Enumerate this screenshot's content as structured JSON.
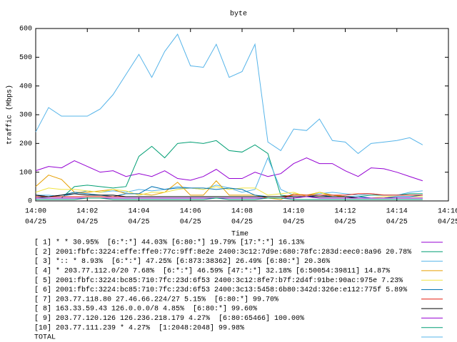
{
  "chart_data": {
    "type": "line",
    "title": "byte",
    "y_label": "traffic (Mbps)",
    "x_label": "Time",
    "x": [
      0,
      0.5,
      1,
      1.5,
      2,
      2.5,
      3,
      3.5,
      4,
      4.5,
      5,
      5.5,
      6,
      6.5,
      7,
      7.5,
      8,
      8.5,
      9,
      9.5,
      10,
      10.5,
      11,
      11.5,
      12,
      12.5,
      13,
      13.5,
      14,
      14.5,
      15
    ],
    "xlim": [
      0,
      16
    ],
    "xticks": [
      {
        "value": 0,
        "label": "14:00",
        "date": "04/25"
      },
      {
        "value": 2,
        "label": "14:02",
        "date": "04/25"
      },
      {
        "value": 4,
        "label": "14:04",
        "date": "04/25"
      },
      {
        "value": 6,
        "label": "14:06",
        "date": "04/25"
      },
      {
        "value": 8,
        "label": "14:08",
        "date": "04/25"
      },
      {
        "value": 10,
        "label": "14:10",
        "date": "04/25"
      },
      {
        "value": 12,
        "label": "14:12",
        "date": "04/25"
      },
      {
        "value": 14,
        "label": "14:14",
        "date": "04/25"
      },
      {
        "value": 16,
        "label": "14:16",
        "date": "04/25"
      }
    ],
    "ylim": [
      0,
      600
    ],
    "yticks": [
      0,
      100,
      200,
      300,
      400,
      500,
      600
    ],
    "grid": false,
    "series": [
      {
        "name": "[ 1] * * 30.95%  [6:*:*] 44.03% [6:80:*] 19.79% [17:*:*] 16.13%",
        "color": "#9400d3",
        "values": [
          105,
          120,
          115,
          140,
          120,
          100,
          105,
          85,
          95,
          85,
          105,
          78,
          72,
          85,
          110,
          78,
          78,
          100,
          85,
          95,
          130,
          150,
          130,
          130,
          105,
          85,
          115,
          112,
          100,
          85,
          70
        ]
      },
      {
        "name": "[ 2] 2001:fbfc:3224:effe:ffe0:77c:9ff:8e2e 2400:3c12:7d9e:680:78fc:283d:eec0:8a96 20.78%",
        "color": "#009e73",
        "values": [
          15,
          10,
          10,
          50,
          55,
          50,
          45,
          50,
          155,
          190,
          150,
          200,
          205,
          200,
          210,
          175,
          170,
          195,
          165,
          20,
          15,
          15,
          30,
          20,
          15,
          15,
          20,
          20,
          20,
          25,
          25
        ]
      },
      {
        "name": "[ 3] *:: * 8.93%  [6:*:*] 47.25% [6:873:38362] 26.49% [6:80:*] 20.36%",
        "color": "#56b4e9",
        "values": [
          20,
          20,
          15,
          25,
          35,
          30,
          35,
          30,
          40,
          35,
          40,
          50,
          45,
          40,
          55,
          45,
          30,
          40,
          150,
          40,
          20,
          20,
          25,
          30,
          25,
          20,
          25,
          20,
          20,
          30,
          35
        ]
      },
      {
        "name": "[ 4] * 203.77.112.0/20 7.68%  [6:*:*] 46.59% [47:*:*] 32.18% [6:50054:39811] 14.87%",
        "color": "#e69f00",
        "values": [
          50,
          90,
          75,
          30,
          30,
          35,
          40,
          25,
          25,
          20,
          30,
          65,
          20,
          20,
          70,
          20,
          20,
          20,
          10,
          5,
          25,
          20,
          30,
          20,
          15,
          10,
          10,
          10,
          15,
          15,
          15
        ]
      },
      {
        "name": "[ 5] 2001:fbfc:3224:bc85:710:7fc:23d:6f53 2400:3c12:8fe7:b7f:2d4f:91be:90ac:975e 7.23%",
        "color": "#f0e442",
        "values": [
          30,
          45,
          40,
          40,
          35,
          30,
          40,
          35,
          20,
          30,
          30,
          40,
          45,
          40,
          50,
          40,
          45,
          45,
          20,
          25,
          30,
          15,
          30,
          15,
          15,
          10,
          10,
          15,
          15,
          15,
          15
        ]
      },
      {
        "name": "[ 6] 2001:fbfc:3224:bc85:710:7fc:23d:6f53 2400:3c13:5458:6b80:342d:326e:e112:775f 5.89%",
        "color": "#0072b2",
        "values": [
          20,
          15,
          20,
          30,
          25,
          20,
          15,
          25,
          25,
          50,
          40,
          45,
          45,
          45,
          40,
          45,
          40,
          20,
          15,
          15,
          15,
          15,
          20,
          15,
          15,
          15,
          10,
          10,
          15,
          15,
          20
        ]
      },
      {
        "name": "[ 7] 203.77.118.80 27.46.66.224/27 5.15%  [6:80:*] 99.70%",
        "color": "#e51e10",
        "values": [
          15,
          15,
          15,
          15,
          15,
          15,
          15,
          15,
          15,
          15,
          15,
          15,
          15,
          15,
          15,
          15,
          15,
          15,
          15,
          15,
          20,
          20,
          20,
          20,
          20,
          25,
          25,
          20,
          20,
          20,
          20
        ]
      },
      {
        "name": "[ 8] 163.33.59.43 126.0.0.0/8 4.85%  [6:80:*] 99.60%",
        "color": "#000000",
        "values": [
          20,
          15,
          20,
          25,
          20,
          20,
          20,
          15,
          15,
          15,
          15,
          15,
          15,
          15,
          15,
          15,
          15,
          15,
          15,
          15,
          15,
          15,
          15,
          15,
          15,
          10,
          10,
          10,
          10,
          10,
          10
        ]
      },
      {
        "name": "[ 9] 203.77.120.126 126.236.218.179 4.27%  [6:80:65466] 100.00%",
        "color": "#9400d3",
        "values": [
          10,
          10,
          10,
          10,
          10,
          10,
          10,
          10,
          10,
          10,
          10,
          10,
          10,
          10,
          10,
          10,
          10,
          10,
          10,
          10,
          10,
          15,
          10,
          10,
          10,
          10,
          10,
          10,
          10,
          10,
          10
        ]
      },
      {
        "name": "[10] 203.77.111.239 * 4.27%  [1:2048:2048] 99.98%",
        "color": "#009e73",
        "values": [
          5,
          5,
          5,
          5,
          10,
          10,
          5,
          5,
          5,
          5,
          5,
          5,
          5,
          5,
          10,
          5,
          5,
          5,
          10,
          10,
          5,
          5,
          5,
          5,
          5,
          5,
          5,
          5,
          5,
          5,
          5
        ]
      },
      {
        "name": "TOTAL",
        "color": "#56b4e9",
        "values": [
          240,
          325,
          295,
          295,
          295,
          320,
          370,
          440,
          510,
          430,
          520,
          580,
          470,
          465,
          545,
          430,
          450,
          545,
          205,
          175,
          250,
          245,
          285,
          210,
          205,
          165,
          200,
          205,
          210,
          220,
          195
        ]
      }
    ]
  }
}
